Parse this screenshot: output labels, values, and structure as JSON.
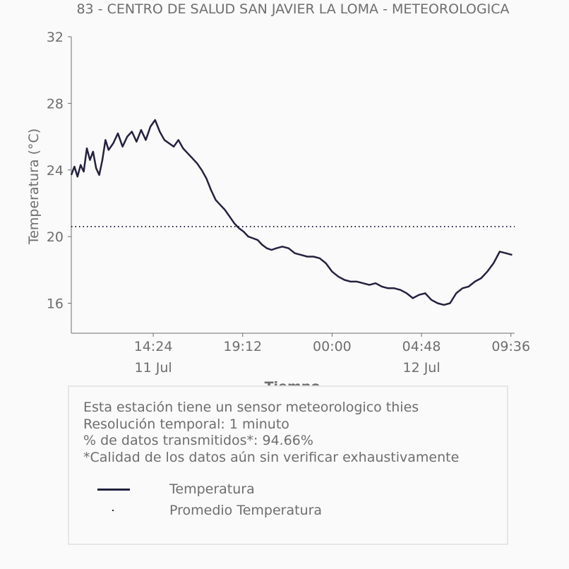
{
  "chart_data": {
    "type": "line",
    "title": "83 - CENTRO DE SALUD SAN JAVIER LA LOMA - METEOROLOGICA",
    "xlabel": "Tiempo",
    "ylabel": "Temperatura (°C)",
    "x_ticks": [
      "14:24",
      "19:12",
      "00:00",
      "04:48",
      "09:36"
    ],
    "x_date_labels": [
      "11 Jul",
      "",
      "",
      "12 Jul",
      ""
    ],
    "y_ticks": [
      16,
      20,
      24,
      28,
      32
    ],
    "ylim": [
      14.2,
      32
    ],
    "xlim": [
      "2023-07-11 10:00",
      "2023-07-12 09:48"
    ],
    "series": [
      {
        "name": "Temperatura",
        "style": "solid",
        "x": [
          "10:00",
          "10:10",
          "10:20",
          "10:30",
          "10:40",
          "10:50",
          "11:00",
          "11:10",
          "11:20",
          "11:30",
          "11:40",
          "11:50",
          "12:00",
          "12:15",
          "12:30",
          "12:45",
          "13:00",
          "13:15",
          "13:30",
          "13:45",
          "14:00",
          "14:15",
          "14:30",
          "14:45",
          "15:00",
          "15:15",
          "15:30",
          "15:45",
          "16:00",
          "16:15",
          "16:30",
          "16:45",
          "17:00",
          "17:15",
          "17:30",
          "17:45",
          "18:00",
          "18:15",
          "18:30",
          "18:45",
          "19:00",
          "19:15",
          "19:30",
          "19:45",
          "20:00",
          "20:15",
          "20:30",
          "20:45",
          "21:00",
          "21:20",
          "21:40",
          "22:00",
          "22:20",
          "22:40",
          "23:00",
          "23:20",
          "23:40",
          "00:00",
          "00:20",
          "00:40",
          "01:00",
          "01:20",
          "01:40",
          "02:00",
          "02:20",
          "02:40",
          "03:00",
          "03:20",
          "03:40",
          "04:00",
          "04:20",
          "04:40",
          "05:00",
          "05:20",
          "05:40",
          "06:00",
          "06:20",
          "06:40",
          "07:00",
          "07:20",
          "07:40",
          "08:00",
          "08:20",
          "08:40",
          "09:00",
          "09:20",
          "09:40"
        ],
        "y": [
          23.7,
          24.2,
          23.6,
          24.3,
          23.9,
          25.3,
          24.6,
          25.1,
          24.1,
          23.7,
          24.6,
          25.8,
          25.2,
          25.6,
          26.2,
          25.4,
          26.0,
          26.3,
          25.7,
          26.4,
          25.8,
          26.6,
          27.0,
          26.3,
          25.8,
          25.6,
          25.4,
          25.8,
          25.3,
          25.0,
          24.7,
          24.4,
          24.0,
          23.5,
          22.8,
          22.2,
          21.9,
          21.6,
          21.2,
          20.8,
          20.5,
          20.3,
          20.0,
          19.9,
          19.8,
          19.5,
          19.3,
          19.2,
          19.3,
          19.4,
          19.3,
          19.0,
          18.9,
          18.8,
          18.8,
          18.7,
          18.4,
          17.9,
          17.6,
          17.4,
          17.3,
          17.3,
          17.2,
          17.1,
          17.2,
          17.0,
          16.9,
          16.9,
          16.8,
          16.6,
          16.3,
          16.5,
          16.6,
          16.2,
          16.0,
          15.9,
          16.0,
          16.6,
          16.9,
          17.0,
          17.3,
          17.5,
          17.9,
          18.4,
          19.1,
          19.0,
          18.9
        ]
      },
      {
        "name": "Promedio Temperatura",
        "style": "dotted",
        "value": 20.6
      }
    ],
    "grid": false,
    "colors": {
      "line": "#24223f",
      "text": "#6e6e6e",
      "axis": "#6e6e6e"
    }
  },
  "info": {
    "lines": [
      "Esta estación tiene un sensor meteorologico thies",
      "Resolución temporal: 1 minuto",
      "% de datos transmitidos*: 94.66%",
      "*Calidad de los datos aún sin verificar exhaustivamente"
    ],
    "legend": [
      {
        "label": "Temperatura",
        "style": "solid"
      },
      {
        "label": "Promedio Temperatura",
        "style": "dotted"
      }
    ]
  }
}
